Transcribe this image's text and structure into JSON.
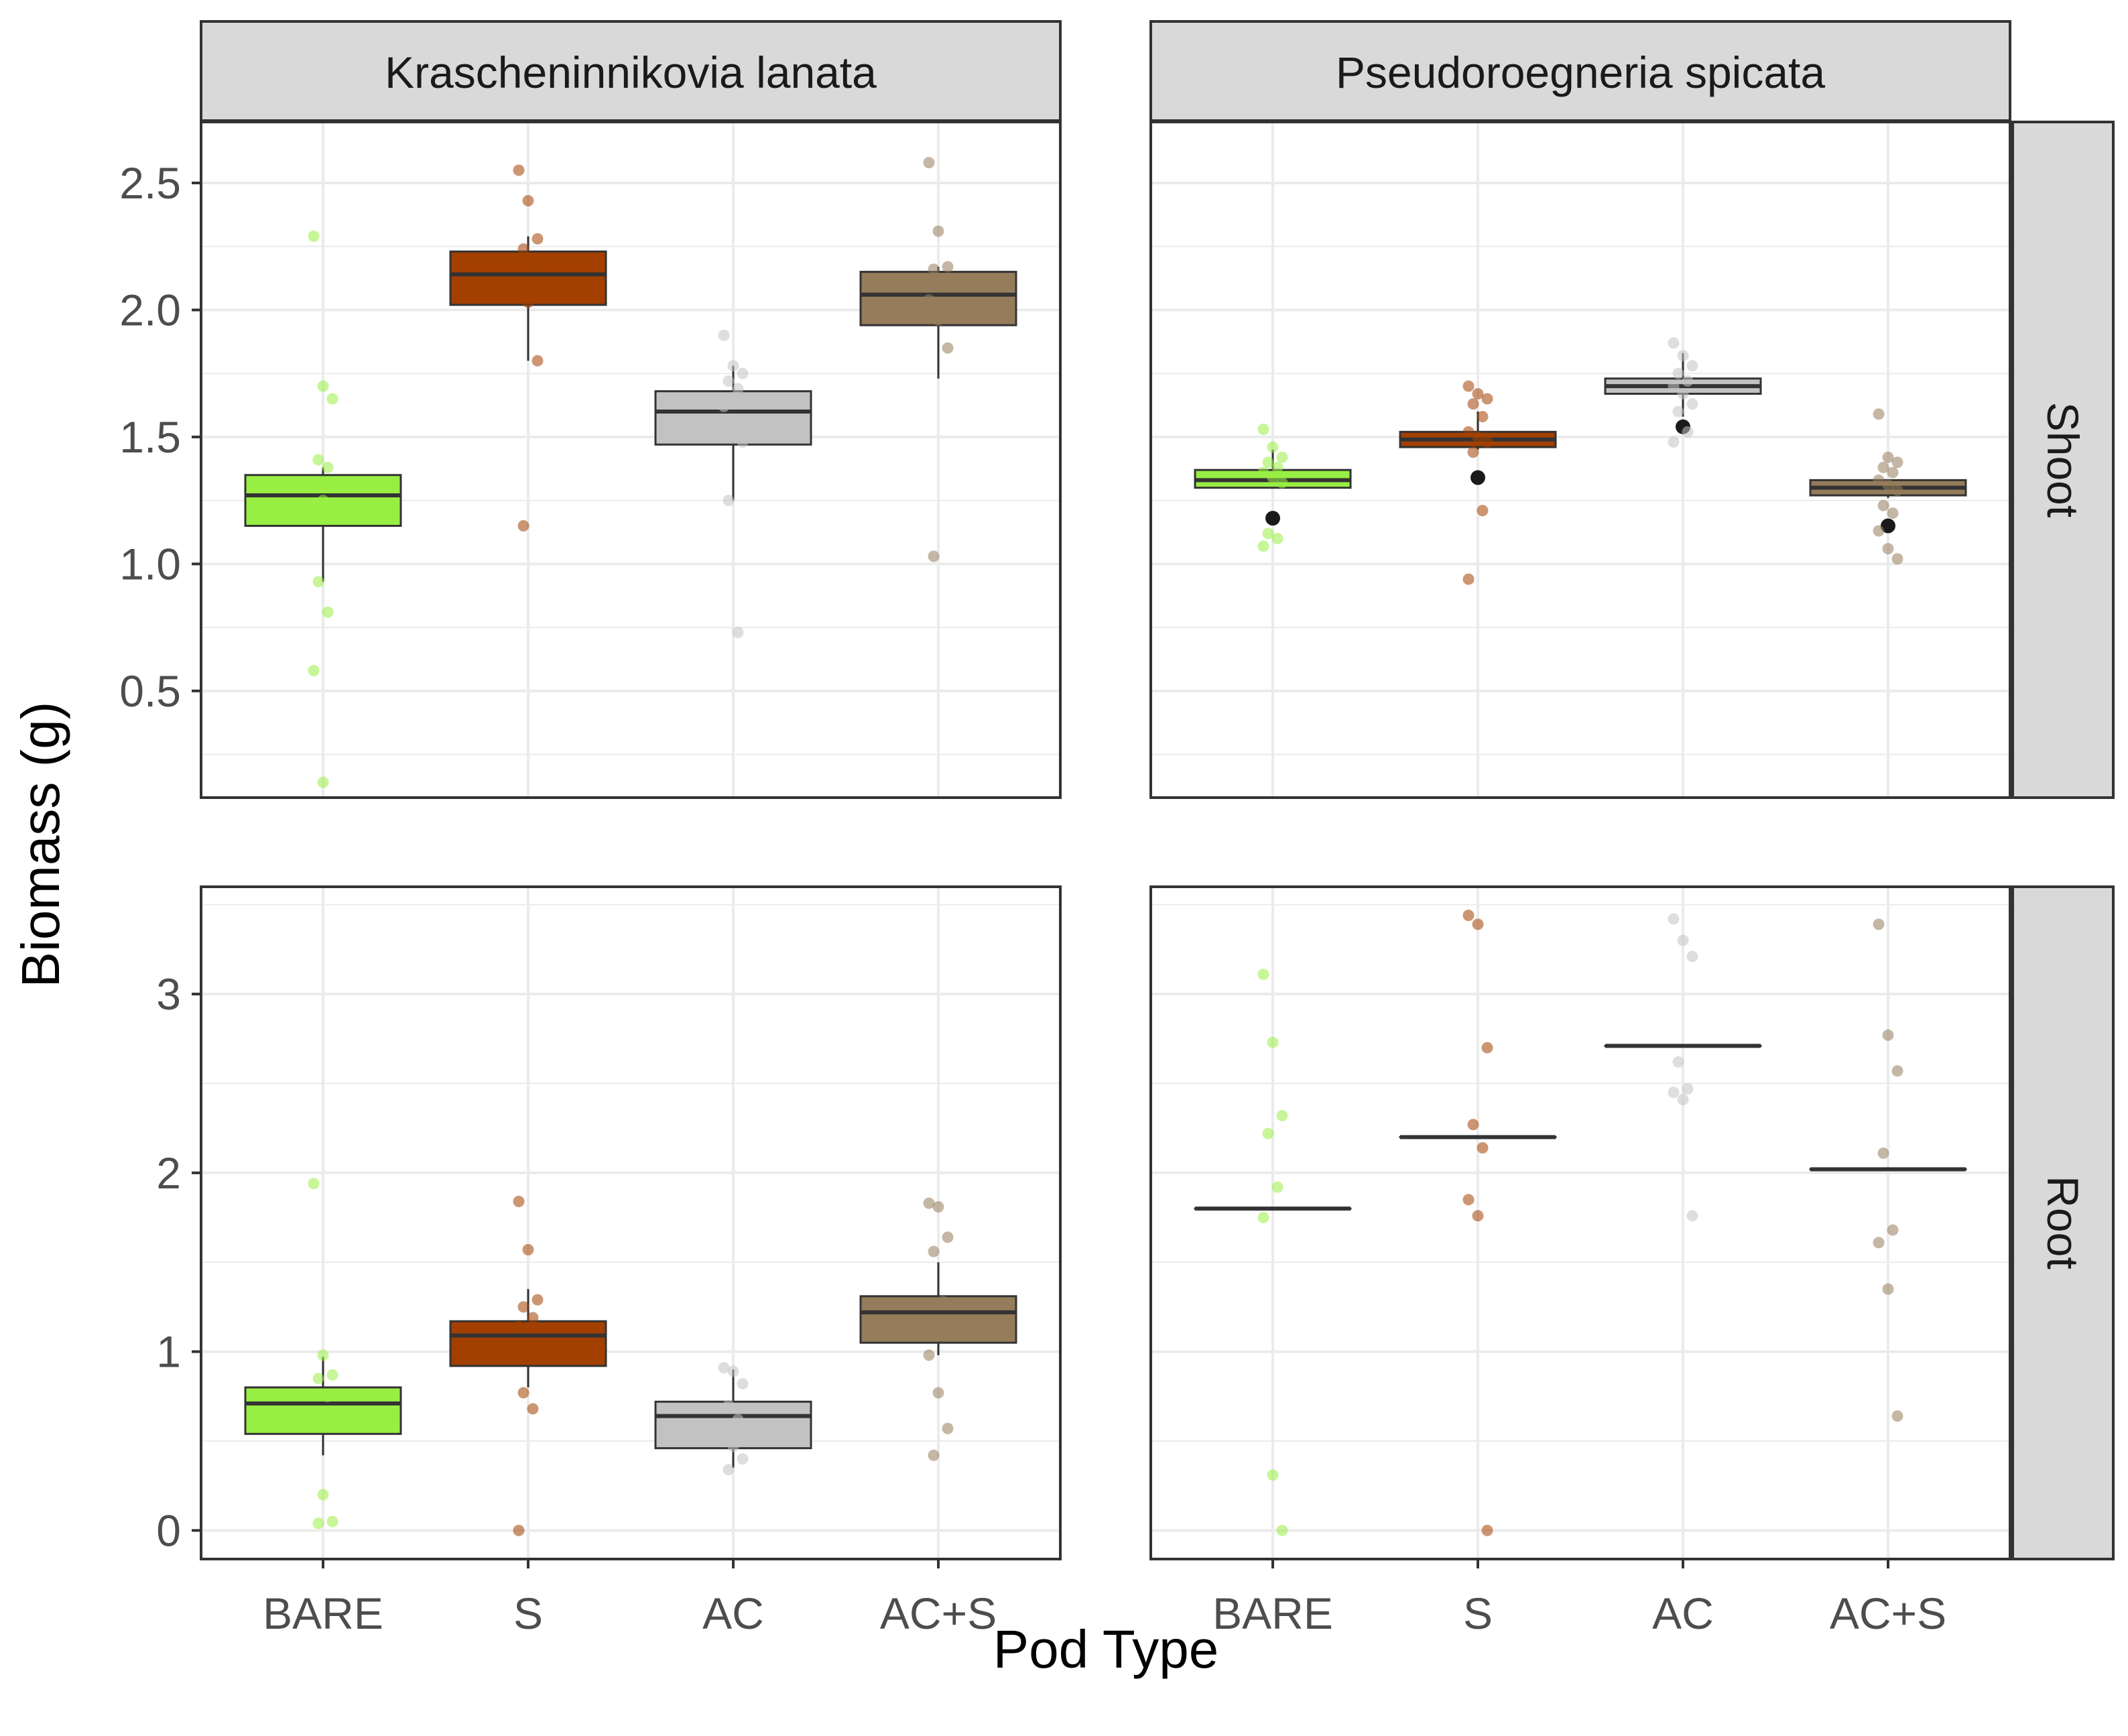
{
  "colors": {
    "BARE": "#99ee44",
    "S": "#a34000",
    "AC": "#c2c2c2",
    "AC+S": "#957c5b",
    "panel_border": "#333333",
    "grid_major": "#ebebeb",
    "strip_fill": "#d9d9d9",
    "box_line": "#333333",
    "outlier": "#1a1a1a"
  },
  "chart_data": {
    "type": "boxplot",
    "xlabel": "Pod Type",
    "ylabel": "Biomass (g)",
    "categories": [
      "BARE",
      "S",
      "AC",
      "AC+S"
    ],
    "facet_columns": [
      "Krascheninnikovia lanata",
      "Pseudoroegneria spicata"
    ],
    "facet_rows": [
      "Shoot",
      "Root"
    ],
    "row_axes": {
      "Shoot": {
        "ylim": [
          0.08,
          2.74
        ],
        "ticks": [
          0.5,
          1.0,
          1.5,
          2.0,
          2.5
        ],
        "tick_labels": [
          "0.5",
          "1.0",
          "1.5",
          "2.0",
          "2.5"
        ],
        "minor": [
          0.25,
          0.75,
          1.25,
          1.75,
          2.25
        ]
      },
      "Root": {
        "ylim": [
          -0.16,
          3.6
        ],
        "ticks": [
          0,
          1,
          2,
          3
        ],
        "tick_labels": [
          "0",
          "1",
          "2",
          "3"
        ],
        "minor": [
          0.5,
          1.5,
          2.5,
          3.5
        ]
      }
    },
    "panels": [
      {
        "row": "Shoot",
        "column": "Krascheninnikovia lanata",
        "boxes": [
          {
            "category": "BARE",
            "lower_whisker": 0.93,
            "q1": 1.15,
            "median": 1.27,
            "q3": 1.35,
            "upper_whisker": 1.38,
            "outliers": [],
            "points": [
              2.29,
              1.7,
              1.65,
              1.41,
              1.38,
              1.32,
              1.25,
              1.18,
              0.93,
              0.81,
              0.58,
              0.14
            ]
          },
          {
            "category": "S",
            "lower_whisker": 1.8,
            "q1": 2.02,
            "median": 2.14,
            "q3": 2.23,
            "upper_whisker": 2.29,
            "outliers": [],
            "points": [
              2.55,
              2.43,
              2.28,
              2.24,
              2.18,
              2.1,
              2.03,
              1.8,
              1.15
            ]
          },
          {
            "category": "AC",
            "lower_whisker": 1.25,
            "q1": 1.47,
            "median": 1.6,
            "q3": 1.68,
            "upper_whisker": 1.78,
            "outliers": [],
            "points": [
              1.9,
              1.78,
              1.75,
              1.72,
              1.69,
              1.62,
              1.55,
              1.48,
              1.25,
              0.73
            ]
          },
          {
            "category": "AC+S",
            "lower_whisker": 1.73,
            "q1": 1.94,
            "median": 2.06,
            "q3": 2.15,
            "upper_whisker": 2.17,
            "outliers": [],
            "points": [
              2.58,
              2.31,
              2.17,
              2.16,
              2.1,
              2.04,
              1.96,
              1.85,
              1.03
            ]
          }
        ]
      },
      {
        "row": "Shoot",
        "column": "Pseudoroegneria spicata",
        "boxes": [
          {
            "category": "BARE",
            "lower_whisker": 1.3,
            "q1": 1.3,
            "median": 1.33,
            "q3": 1.37,
            "upper_whisker": 1.45,
            "outliers": [
              1.18
            ],
            "points": [
              1.53,
              1.46,
              1.42,
              1.4,
              1.38,
              1.36,
              1.34,
              1.32,
              1.12,
              1.1,
              1.07
            ]
          },
          {
            "category": "S",
            "lower_whisker": 1.45,
            "q1": 1.46,
            "median": 1.49,
            "q3": 1.52,
            "upper_whisker": 1.6,
            "outliers": [
              1.34
            ],
            "points": [
              1.7,
              1.67,
              1.65,
              1.63,
              1.58,
              1.52,
              1.5,
              1.48,
              1.44,
              1.21,
              0.94
            ]
          },
          {
            "category": "AC",
            "lower_whisker": 1.58,
            "q1": 1.67,
            "median": 1.7,
            "q3": 1.73,
            "upper_whisker": 1.83,
            "outliers": [
              1.54
            ],
            "points": [
              1.87,
              1.82,
              1.78,
              1.75,
              1.72,
              1.7,
              1.67,
              1.63,
              1.6,
              1.52,
              1.48
            ]
          },
          {
            "category": "AC+S",
            "lower_whisker": 1.26,
            "q1": 1.27,
            "median": 1.3,
            "q3": 1.33,
            "upper_whisker": 1.33,
            "outliers": [
              1.15
            ],
            "points": [
              1.59,
              1.42,
              1.4,
              1.38,
              1.36,
              1.33,
              1.31,
              1.29,
              1.23,
              1.2,
              1.13,
              1.06,
              1.02
            ]
          }
        ]
      },
      {
        "row": "Root",
        "column": "Krascheninnikovia lanata",
        "boxes": [
          {
            "category": "BARE",
            "lower_whisker": 0.42,
            "q1": 0.54,
            "median": 0.71,
            "q3": 0.8,
            "upper_whisker": 0.97,
            "outliers": [],
            "points": [
              1.94,
              0.98,
              0.87,
              0.85,
              0.75,
              0.62,
              0.2,
              0.05,
              0.04
            ]
          },
          {
            "category": "S",
            "lower_whisker": 0.8,
            "q1": 0.92,
            "median": 1.09,
            "q3": 1.17,
            "upper_whisker": 1.35,
            "outliers": [],
            "points": [
              1.84,
              1.57,
              1.29,
              1.25,
              1.19,
              1.14,
              1.05,
              0.96,
              0.77,
              0.68,
              0.0
            ]
          },
          {
            "category": "AC",
            "lower_whisker": 0.35,
            "q1": 0.46,
            "median": 0.64,
            "q3": 0.72,
            "upper_whisker": 0.9,
            "outliers": [],
            "points": [
              0.91,
              0.89,
              0.82,
              0.7,
              0.62,
              0.55,
              0.47,
              0.4,
              0.34
            ]
          },
          {
            "category": "AC+S",
            "lower_whisker": 0.98,
            "q1": 1.05,
            "median": 1.22,
            "q3": 1.31,
            "upper_whisker": 1.5,
            "outliers": [],
            "points": [
              1.83,
              1.81,
              1.64,
              1.56,
              1.28,
              0.98,
              0.77,
              0.57,
              0.42
            ]
          }
        ]
      },
      {
        "row": "Root",
        "column": "Pseudoroegneria spicata",
        "boxes": [
          {
            "category": "BARE",
            "lower_whisker": 1.8,
            "q1": 1.8,
            "median": 1.8,
            "q3": 1.8,
            "upper_whisker": 1.8,
            "outliers": [],
            "points": [
              3.11,
              2.73,
              2.32,
              2.22,
              1.92,
              1.75,
              0.31,
              0.0
            ]
          },
          {
            "category": "S",
            "lower_whisker": 2.2,
            "q1": 2.2,
            "median": 2.2,
            "q3": 2.2,
            "upper_whisker": 2.2,
            "outliers": [],
            "points": [
              3.44,
              3.39,
              2.7,
              2.27,
              2.14,
              1.85,
              1.76,
              0.0
            ]
          },
          {
            "category": "AC",
            "lower_whisker": 2.71,
            "q1": 2.71,
            "median": 2.71,
            "q3": 2.71,
            "upper_whisker": 2.71,
            "outliers": [],
            "points": [
              3.42,
              3.3,
              3.21,
              2.62,
              2.47,
              2.45,
              2.41,
              1.76
            ]
          },
          {
            "category": "AC+S",
            "lower_whisker": 2.02,
            "q1": 2.02,
            "median": 2.02,
            "q3": 2.02,
            "upper_whisker": 2.02,
            "outliers": [],
            "points": [
              3.39,
              2.77,
              2.57,
              2.11,
              1.68,
              1.61,
              1.35,
              0.64
            ]
          }
        ]
      }
    ]
  }
}
